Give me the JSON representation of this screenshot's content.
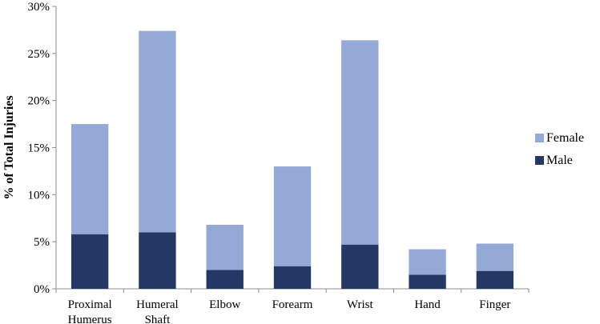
{
  "chart_data": {
    "type": "bar",
    "stacked": true,
    "title": "",
    "xlabel": "",
    "ylabel": "% of Total Injuries",
    "ylim": [
      0,
      30
    ],
    "y_unit": "%",
    "y_ticks": [
      "0%",
      "5%",
      "10%",
      "15%",
      "20%",
      "25%",
      "30%"
    ],
    "y_tick_values": [
      0,
      5,
      10,
      15,
      20,
      25,
      30
    ],
    "categories": [
      [
        "Proximal",
        "Humerus"
      ],
      [
        "Humeral",
        "Shaft"
      ],
      [
        "Elbow"
      ],
      [
        "Forearm"
      ],
      [
        "Wrist"
      ],
      [
        "Hand"
      ],
      [
        "Finger"
      ]
    ],
    "series": [
      {
        "name": "Male",
        "color": "#253764",
        "values": [
          5.8,
          6.0,
          2.0,
          2.4,
          4.7,
          1.5,
          1.9
        ]
      },
      {
        "name": "Female",
        "color": "#95a9d6",
        "values": [
          11.7,
          21.4,
          4.8,
          10.6,
          21.7,
          2.7,
          2.9
        ]
      }
    ],
    "legend_position": "right",
    "legend_order": [
      "Female",
      "Male"
    ],
    "grid": false
  }
}
